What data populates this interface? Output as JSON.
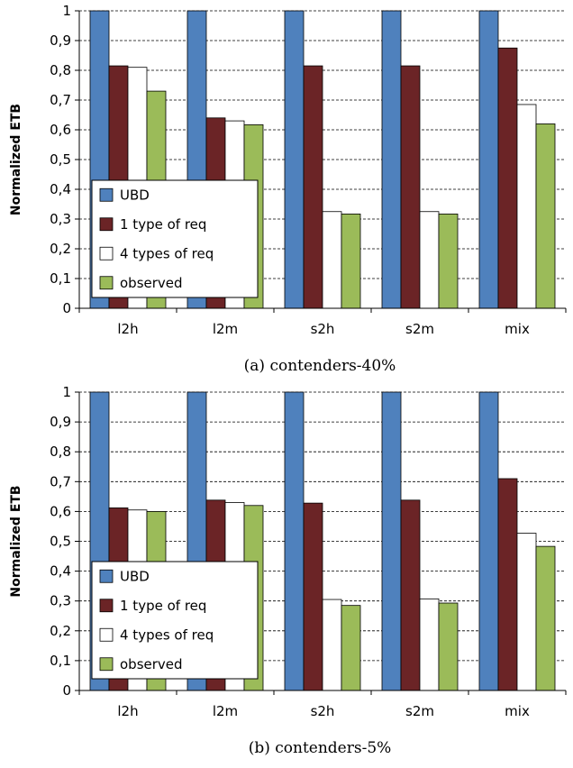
{
  "colors": {
    "UBD": "#4F81BD",
    "1 type of req": "#6B2426",
    "4 types of req": "#FFFFFF",
    "observed": "#9BBB59"
  },
  "chart_data": [
    {
      "type": "bar",
      "caption": "(a) contenders-40%",
      "ylabel": "Normalized ETB",
      "ylim": [
        0,
        1
      ],
      "yticks": [
        "0",
        "0,1",
        "0,2",
        "0,3",
        "0,4",
        "0,5",
        "0,6",
        "0,7",
        "0,8",
        "0,9",
        "1"
      ],
      "grid": true,
      "legend_position": "left-middle",
      "categories": [
        "l2h",
        "l2m",
        "s2h",
        "s2m",
        "mix"
      ],
      "series": [
        {
          "name": "UBD",
          "values": [
            1,
            1,
            1,
            1,
            1
          ]
        },
        {
          "name": "1 type of req",
          "values": [
            0.815,
            0.64,
            0.815,
            0.815,
            0.875
          ]
        },
        {
          "name": "4 types of req",
          "values": [
            0.81,
            0.63,
            0.325,
            0.325,
            0.685
          ]
        },
        {
          "name": "observed",
          "values": [
            0.73,
            0.617,
            0.317,
            0.317,
            0.62
          ]
        }
      ]
    },
    {
      "type": "bar",
      "caption": "(b) contenders-5%",
      "ylabel": "Normalized ETB",
      "ylim": [
        0,
        1
      ],
      "yticks": [
        "0",
        "0,1",
        "0,2",
        "0,3",
        "0,4",
        "0,5",
        "0,6",
        "0,7",
        "0,8",
        "0,9",
        "1"
      ],
      "grid": true,
      "legend_position": "left-middle",
      "categories": [
        "l2h",
        "l2m",
        "s2h",
        "s2m",
        "mix"
      ],
      "series": [
        {
          "name": "UBD",
          "values": [
            1,
            1,
            1,
            1,
            1
          ]
        },
        {
          "name": "1 type of req",
          "values": [
            0.612,
            0.638,
            0.628,
            0.638,
            0.71
          ]
        },
        {
          "name": "4 types of req",
          "values": [
            0.605,
            0.63,
            0.305,
            0.307,
            0.527
          ]
        },
        {
          "name": "observed",
          "values": [
            0.6,
            0.62,
            0.285,
            0.293,
            0.483
          ]
        }
      ]
    }
  ]
}
